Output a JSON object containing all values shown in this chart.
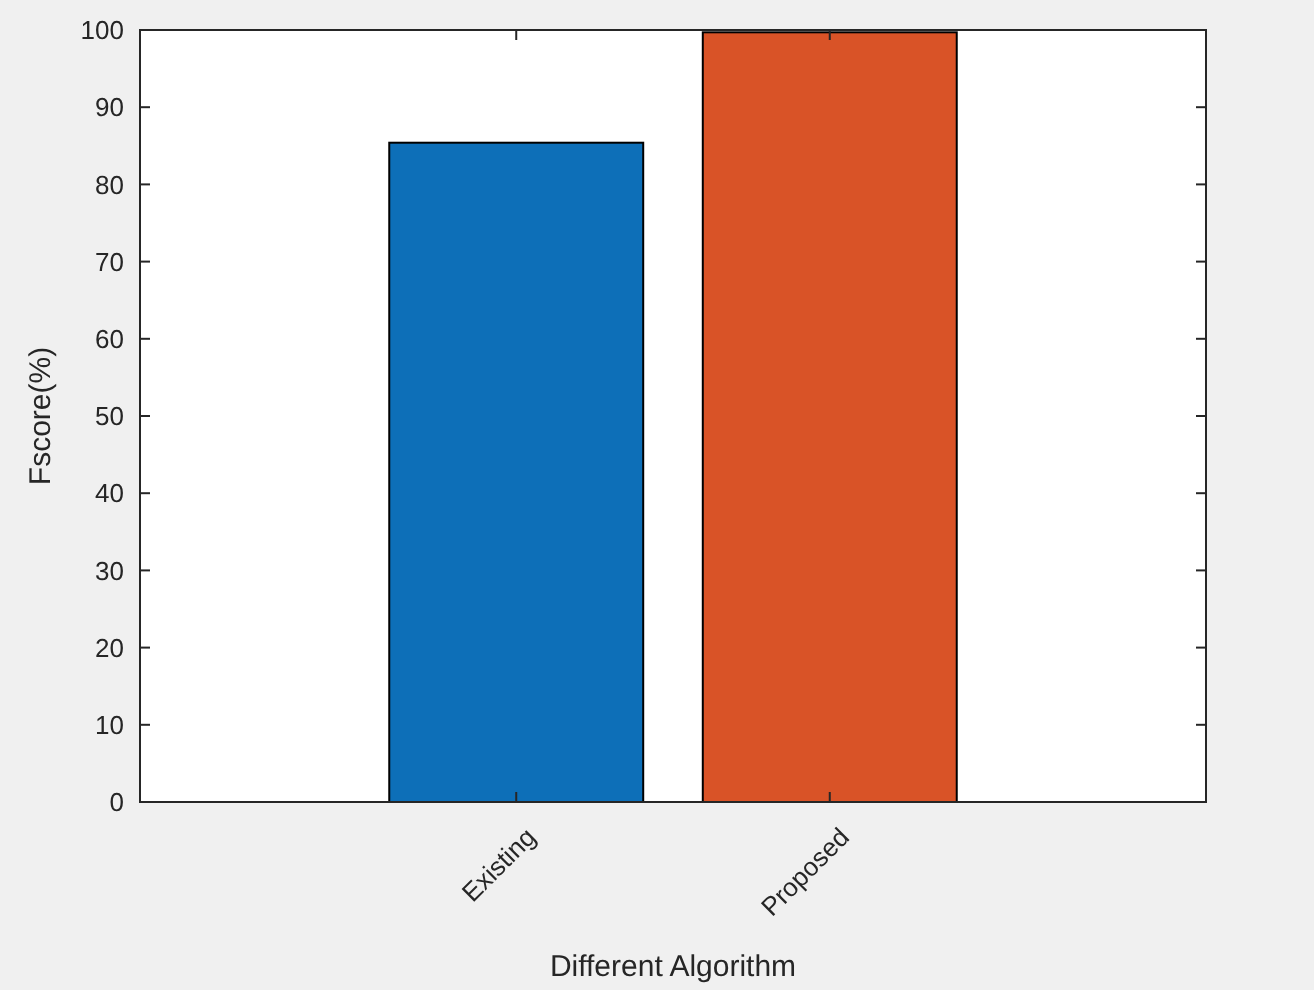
{
  "chart_data": {
    "type": "bar",
    "xlabel": "Different Algorithm",
    "ylabel": "Fscore(%)",
    "categories": [
      "Existing",
      "Proposed"
    ],
    "values": [
      85.4,
      99.7
    ],
    "colors": [
      "#0d6fb8",
      "#d95327"
    ],
    "ylim": [
      0,
      100
    ],
    "yticks": [
      0,
      10,
      20,
      30,
      40,
      50,
      60,
      70,
      80,
      90,
      100
    ]
  }
}
